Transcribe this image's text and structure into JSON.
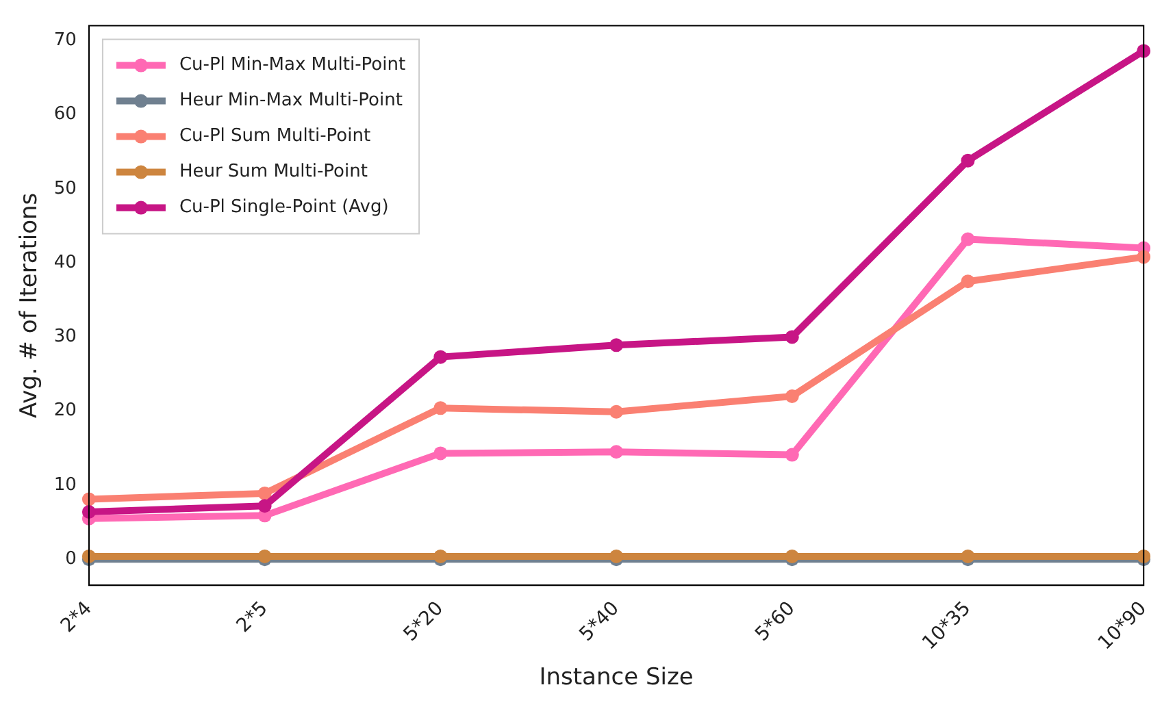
{
  "chart_data": {
    "type": "line",
    "xlabel": "Instance Size",
    "ylabel": "Avg. # of Iterations",
    "categories": [
      "2*4",
      "2*5",
      "5*20",
      "5*40",
      "5*60",
      "10*35",
      "10*90"
    ],
    "ylim": [
      -3.5,
      72
    ],
    "yticks": [
      0,
      10,
      20,
      30,
      40,
      50,
      60,
      70
    ],
    "grid": false,
    "legend": "top left",
    "marker": "circle",
    "line_style": "solid",
    "series": [
      {
        "name": "Cu-Pl Min-Max Multi-Point",
        "color": "#ff69b4",
        "values": [
          5.5,
          5.9,
          14.3,
          14.5,
          14.1,
          43.2,
          42.0
        ]
      },
      {
        "name": "Heur Min-Max Multi-Point",
        "color": "#708090",
        "values": [
          0,
          0,
          0,
          0,
          0,
          0,
          0
        ]
      },
      {
        "name": "Cu-Pl Sum Multi-Point",
        "color": "#fa8072",
        "values": [
          8.1,
          8.9,
          20.4,
          19.9,
          22.0,
          37.5,
          40.8
        ]
      },
      {
        "name": "Heur Sum Multi-Point",
        "color": "#cd853f",
        "values": [
          0.4,
          0.4,
          0.4,
          0.4,
          0.4,
          0.4,
          0.4
        ]
      },
      {
        "name": "Cu-Pl Single-Point (Avg)",
        "color": "#c71585",
        "values": [
          6.4,
          7.2,
          27.3,
          28.9,
          30.0,
          53.8,
          68.6
        ]
      }
    ]
  }
}
